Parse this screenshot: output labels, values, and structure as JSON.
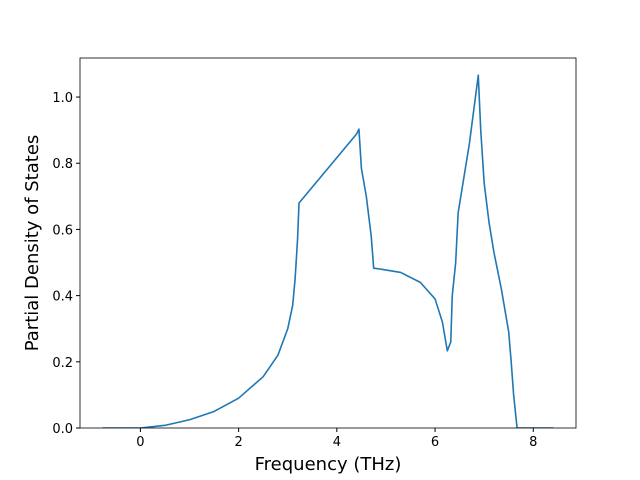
{
  "chart_data": {
    "type": "line",
    "xlabel": "Frequency (THz)",
    "ylabel": "Partial Density of States",
    "xlim": [
      -1.23,
      8.87
    ],
    "ylim": [
      0,
      1.118
    ],
    "xticks": [
      0,
      2,
      4,
      6,
      8
    ],
    "yticks": [
      {
        "value": 0,
        "label": "0.0"
      },
      0.2,
      0.4,
      0.6,
      0.8,
      {
        "value": 1,
        "label": "1.0"
      }
    ],
    "series": [
      {
        "color": "#1f77b4",
        "x": [
          -0.77,
          0,
          0.5,
          1.0,
          1.5,
          2.0,
          2.5,
          2.8,
          3.0,
          3.1,
          3.15,
          3.2,
          3.23,
          4.4,
          4.45,
          4.5,
          4.6,
          4.7,
          4.75,
          4.9,
          5.3,
          5.7,
          6.0,
          6.15,
          6.25,
          6.32,
          6.35,
          6.42,
          6.47,
          6.7,
          6.88,
          6.93,
          7.0,
          7.1,
          7.2,
          7.35,
          7.5,
          7.55,
          7.6,
          7.67,
          8.41
        ],
        "values": [
          0,
          0,
          0.008,
          0.025,
          0.05,
          0.09,
          0.155,
          0.22,
          0.3,
          0.37,
          0.45,
          0.57,
          0.68,
          0.888,
          0.903,
          0.785,
          0.7,
          0.58,
          0.483,
          0.48,
          0.47,
          0.44,
          0.39,
          0.32,
          0.233,
          0.26,
          0.4,
          0.5,
          0.65,
          0.86,
          1.066,
          0.9,
          0.74,
          0.62,
          0.53,
          0.42,
          0.29,
          0.2,
          0.1,
          0,
          0
        ]
      }
    ]
  }
}
